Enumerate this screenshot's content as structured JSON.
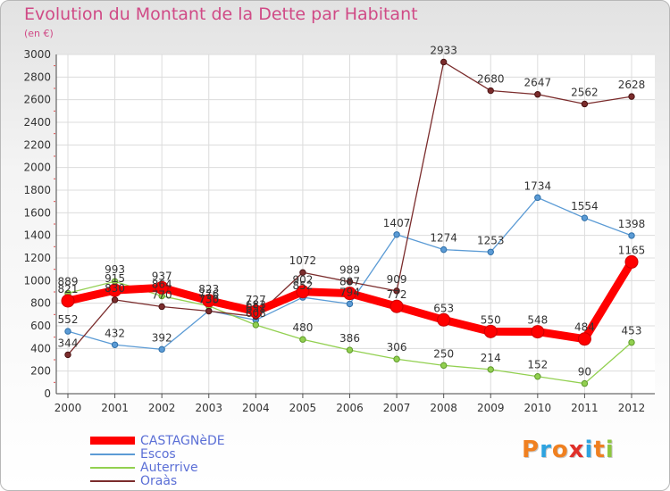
{
  "title": "Evolution du Montant de la Dette par Habitant",
  "unit": "(en €)",
  "logo": {
    "text": "Proxiti",
    "colors": [
      "#f08020",
      "#2ea3e0",
      "#f08020",
      "#e0302a",
      "#2ea3e0",
      "#f08020",
      "#8dc63f"
    ]
  },
  "chart_data": {
    "type": "line",
    "title": "Evolution du Montant de la Dette par Habitant",
    "ylabel": "(en €)",
    "xlabel": "",
    "ylim": [
      0,
      3000
    ],
    "yticks": [
      0,
      200,
      400,
      600,
      800,
      1000,
      1200,
      1400,
      1600,
      1800,
      2000,
      2200,
      2400,
      2600,
      2800,
      3000
    ],
    "grid": true,
    "legend_position": "bottom-left",
    "x": [
      "2000",
      "2001",
      "2002",
      "2003",
      "2004",
      "2005",
      "2006",
      "2007",
      "2008",
      "2009",
      "2010",
      "2011",
      "2012"
    ],
    "series": [
      {
        "name": "CASTAGNèDE",
        "color": "#ff0000",
        "values": [
          821,
          915,
          937,
          823,
          727,
          902,
          887,
          772,
          653,
          550,
          548,
          484,
          1165
        ]
      },
      {
        "name": "Escos",
        "color": "#5b9bd5",
        "values": [
          552,
          432,
          392,
          733,
          651,
          852,
          794,
          1407,
          1274,
          1253,
          1734,
          1554,
          1398
        ]
      },
      {
        "name": "Auterrive",
        "color": "#92d050",
        "values": [
          889,
          993,
          864,
          776,
          608,
          480,
          386,
          306,
          250,
          214,
          152,
          90,
          453
        ]
      },
      {
        "name": "Oraàs",
        "color": "#7b2c2c",
        "values": [
          344,
          830,
          770,
          730,
          683,
          1072,
          989,
          909,
          2933,
          2680,
          2647,
          2562,
          2628
        ]
      }
    ]
  }
}
